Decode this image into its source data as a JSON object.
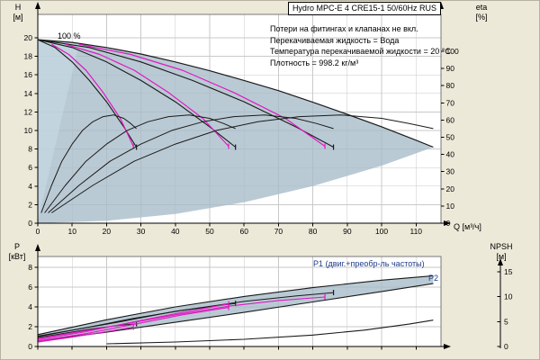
{
  "window": {
    "title_box": "Hydro MPC-E 4 CRE15-1 50/60Hz RUS"
  },
  "info_lines": [
    "Потери на фитингах и клапанах не вкл.",
    "Перекачиваемая жидкость = Вода",
    "Температура перекачиваемой жидкости = 20 °C",
    "Плотность = 998.2 кг/м³"
  ],
  "labels": {
    "speed": "100 %",
    "p1": "P1 (двиг.+преобр-ль частоты)",
    "p2": "P2",
    "h_axis": "H",
    "h_unit": "[м]",
    "eta_axis": "eta",
    "eta_unit": "[%]",
    "q_axis": "Q [м³/ч]",
    "p_axis": "P",
    "p_unit": "[кВт]",
    "npsh_axis": "NPSH",
    "npsh_unit": "[м]"
  },
  "colors": {
    "background": "#ece9d8",
    "plot_bg": "#ffffff",
    "grid": "#c9c9c9",
    "curve": "#1a1a1a",
    "magenta": "#e019c3",
    "envelope": "#a9bdc9",
    "wedge": "#c6d9e4",
    "navy": "#1f3c8c"
  },
  "chart_data": [
    {
      "type": "line",
      "name": "head-flow-chart",
      "x": {
        "label": "Q [м³/ч]",
        "min": 0,
        "max": 117,
        "ticks": [
          0,
          10,
          20,
          30,
          40,
          50,
          60,
          70,
          80,
          90,
          100,
          110
        ]
      },
      "y_left": {
        "label": "H [м]",
        "min": 0,
        "max": 22.5,
        "ticks": [
          0,
          2,
          4,
          6,
          8,
          10,
          12,
          14,
          16,
          18,
          20
        ]
      },
      "y_right": {
        "label": "eta [%]",
        "min": 0,
        "max": 120,
        "ticks": [
          0,
          10,
          20,
          30,
          40,
          50,
          60,
          70,
          80,
          90,
          100
        ]
      },
      "regions": [
        {
          "name": "operating-envelope",
          "color": "envelope",
          "opacity": 0.8,
          "upper": [
            [
              0,
              19.8
            ],
            [
              10,
              19.5
            ],
            [
              20,
              18.95
            ],
            [
              30,
              18.25
            ],
            [
              40,
              17.4
            ],
            [
              50,
              16.45
            ],
            [
              60,
              15.4
            ],
            [
              70,
              14.3
            ],
            [
              80,
              13.05
            ],
            [
              90,
              11.75
            ],
            [
              100,
              10.4
            ],
            [
              110,
              8.95
            ],
            [
              115,
              8.2
            ]
          ],
          "lower": [
            [
              0,
              0
            ],
            [
              20,
              0.25
            ],
            [
              40,
              1.0
            ],
            [
              60,
              2.25
            ],
            [
              80,
              4.0
            ],
            [
              100,
              6.2
            ],
            [
              115,
              8.2
            ]
          ]
        },
        {
          "name": "setpoint-wedge",
          "color": "wedge",
          "opacity": 0.65,
          "upper": [
            [
              0,
              19.8
            ],
            [
              12,
              19.35
            ]
          ],
          "lower": [
            [
              0,
              0.2
            ],
            [
              12,
              19.35
            ]
          ]
        }
      ],
      "series": [
        {
          "name": "pump-curve-4max",
          "axis": "left",
          "color": "curve",
          "width": 1.2,
          "points": [
            [
              0,
              19.8
            ],
            [
              10,
              19.5
            ],
            [
              20,
              18.95
            ],
            [
              30,
              18.25
            ],
            [
              40,
              17.4
            ],
            [
              50,
              16.45
            ],
            [
              60,
              15.4
            ],
            [
              70,
              14.3
            ],
            [
              80,
              13.05
            ],
            [
              90,
              11.75
            ],
            [
              100,
              10.4
            ],
            [
              110,
              8.95
            ],
            [
              115,
              8.2
            ]
          ]
        },
        {
          "name": "pump-curve-3max",
          "axis": "left",
          "color": "curve",
          "width": 1.1,
          "end_tick": true,
          "points": [
            [
              0,
              19.8
            ],
            [
              15,
              18.95
            ],
            [
              30,
              17.4
            ],
            [
              45,
              15.4
            ],
            [
              60,
              13.1
            ],
            [
              75,
              10.4
            ],
            [
              86,
              8.2
            ]
          ]
        },
        {
          "name": "pump-curve-2max",
          "axis": "left",
          "color": "curve",
          "width": 1.1,
          "end_tick": true,
          "points": [
            [
              0,
              19.8
            ],
            [
              10,
              18.95
            ],
            [
              20,
              17.4
            ],
            [
              30,
              15.4
            ],
            [
              40,
              13.1
            ],
            [
              50,
              10.4
            ],
            [
              57.5,
              8.2
            ]
          ]
        },
        {
          "name": "pump-curve-1max",
          "axis": "left",
          "color": "curve",
          "width": 1.1,
          "end_tick": true,
          "points": [
            [
              0,
              19.8
            ],
            [
              5,
              18.95
            ],
            [
              10,
              17.4
            ],
            [
              15,
              15.4
            ],
            [
              20,
              13.1
            ],
            [
              25,
              10.4
            ],
            [
              28.7,
              8.2
            ]
          ]
        },
        {
          "name": "duty-curve-1",
          "axis": "left",
          "color": "magenta",
          "width": 1.2,
          "end_tick": true,
          "points": [
            [
              4,
              19.3
            ],
            [
              9,
              18.2
            ],
            [
              14,
              16.5
            ],
            [
              19,
              14.1
            ],
            [
              24,
              11.3
            ],
            [
              27.8,
              8.3
            ]
          ]
        },
        {
          "name": "duty-curve-2",
          "axis": "left",
          "color": "magenta",
          "width": 1.2,
          "end_tick": true,
          "points": [
            [
              8,
              19.3
            ],
            [
              18,
              18.2
            ],
            [
              28,
              16.5
            ],
            [
              38,
              14.1
            ],
            [
              48,
              11.3
            ],
            [
              55.5,
              8.3
            ]
          ]
        },
        {
          "name": "duty-curve-3",
          "axis": "left",
          "color": "magenta",
          "width": 1.2,
          "end_tick": true,
          "points": [
            [
              12,
              19.3
            ],
            [
              27,
              18.2
            ],
            [
              42,
              16.5
            ],
            [
              57,
              14.1
            ],
            [
              72,
              11.3
            ],
            [
              83.5,
              8.3
            ]
          ]
        },
        {
          "name": "eta-curve-1",
          "axis": "right",
          "color": "curve",
          "width": 1,
          "points": [
            [
              1,
              6
            ],
            [
              4,
              22
            ],
            [
              7,
              36
            ],
            [
              10,
              46
            ],
            [
              13,
              54
            ],
            [
              16,
              59
            ],
            [
              19,
              62
            ],
            [
              22,
              63
            ],
            [
              25,
              61
            ],
            [
              27,
              58
            ],
            [
              28.7,
              55
            ]
          ]
        },
        {
          "name": "eta-curve-2",
          "axis": "right",
          "color": "curve",
          "width": 1,
          "points": [
            [
              2,
              6
            ],
            [
              8,
              22
            ],
            [
              14,
              36
            ],
            [
              20,
              46
            ],
            [
              26,
              54
            ],
            [
              32,
              59
            ],
            [
              38,
              62
            ],
            [
              44,
              63
            ],
            [
              50,
              61
            ],
            [
              54,
              58
            ],
            [
              57.5,
              55
            ]
          ]
        },
        {
          "name": "eta-curve-3",
          "axis": "right",
          "color": "curve",
          "width": 1,
          "points": [
            [
              3,
              6
            ],
            [
              12,
              22
            ],
            [
              21,
              36
            ],
            [
              30,
              46
            ],
            [
              39,
              54
            ],
            [
              48,
              59
            ],
            [
              57,
              62
            ],
            [
              66,
              63
            ],
            [
              75,
              61
            ],
            [
              81,
              58
            ],
            [
              86,
              55
            ]
          ]
        },
        {
          "name": "eta-curve-4",
          "axis": "right",
          "color": "curve",
          "width": 1,
          "points": [
            [
              4,
              6
            ],
            [
              16,
              22
            ],
            [
              28,
              36
            ],
            [
              40,
              46
            ],
            [
              52,
              54
            ],
            [
              64,
              59
            ],
            [
              76,
              62
            ],
            [
              88,
              63
            ],
            [
              100,
              61
            ],
            [
              108,
              58
            ],
            [
              115,
              55
            ]
          ]
        }
      ]
    },
    {
      "type": "line",
      "name": "power-npsh-chart",
      "x": {
        "label": "",
        "min": 0,
        "max": 117,
        "ticks": [
          0,
          10,
          20,
          30,
          40,
          50,
          60,
          70,
          80,
          90,
          100,
          110
        ]
      },
      "y_left": {
        "label": "P [кВт]",
        "min": 0,
        "max": 9,
        "ticks": [
          0,
          2,
          4,
          6,
          8
        ]
      },
      "y_right": {
        "label": "NPSH [м]",
        "min": 0,
        "max": 18,
        "ticks": [
          0,
          5,
          10,
          15
        ]
      },
      "regions": [
        {
          "name": "power-envelope",
          "color": "envelope",
          "opacity": 0.8,
          "upper": [
            [
              0,
              1.2
            ],
            [
              20,
              2.7
            ],
            [
              40,
              4.0
            ],
            [
              60,
              5.05
            ],
            [
              80,
              5.95
            ],
            [
              100,
              6.7
            ],
            [
              115,
              7.15
            ]
          ],
          "lower": [
            [
              0,
              0.55
            ],
            [
              20,
              1.45
            ],
            [
              40,
              2.45
            ],
            [
              60,
              3.45
            ],
            [
              80,
              4.5
            ],
            [
              100,
              5.55
            ],
            [
              115,
              6.35
            ]
          ]
        }
      ],
      "series": [
        {
          "name": "p1-max-curve",
          "axis": "left",
          "color": "curve",
          "width": 1.1,
          "points": [
            [
              0,
              1.2
            ],
            [
              20,
              2.7
            ],
            [
              40,
              4.0
            ],
            [
              60,
              5.05
            ],
            [
              80,
              5.95
            ],
            [
              100,
              6.7
            ],
            [
              115,
              7.15
            ]
          ]
        },
        {
          "name": "p2-curve",
          "axis": "left",
          "color": "curve",
          "width": 1.1,
          "points": [
            [
              0,
              0.55
            ],
            [
              20,
              1.45
            ],
            [
              40,
              2.45
            ],
            [
              60,
              3.45
            ],
            [
              80,
              4.5
            ],
            [
              100,
              5.55
            ],
            [
              115,
              6.35
            ]
          ]
        },
        {
          "name": "power-curve-1",
          "axis": "left",
          "color": "curve",
          "width": 1,
          "end_tick": true,
          "points": [
            [
              0,
              0.9
            ],
            [
              8,
              1.35
            ],
            [
              16,
              1.8
            ],
            [
              24,
              2.15
            ],
            [
              28.7,
              2.3
            ]
          ]
        },
        {
          "name": "power-curve-2",
          "axis": "left",
          "color": "curve",
          "width": 1,
          "end_tick": true,
          "points": [
            [
              0,
              1.0
            ],
            [
              14,
              1.9
            ],
            [
              28,
              2.85
            ],
            [
              42,
              3.65
            ],
            [
              57.5,
              4.35
            ]
          ]
        },
        {
          "name": "power-curve-3",
          "axis": "left",
          "color": "curve",
          "width": 1,
          "end_tick": true,
          "points": [
            [
              0,
              1.05
            ],
            [
              20,
              2.25
            ],
            [
              40,
              3.55
            ],
            [
              60,
              4.55
            ],
            [
              75,
              5.1
            ],
            [
              86,
              5.45
            ]
          ]
        },
        {
          "name": "duty-power-1",
          "axis": "left",
          "color": "magenta",
          "width": 1.1,
          "end_tick": true,
          "points": [
            [
              0,
              0.45
            ],
            [
              10,
              0.95
            ],
            [
              20,
              1.5
            ],
            [
              27.8,
              1.95
            ]
          ]
        },
        {
          "name": "duty-power-2",
          "axis": "left",
          "color": "magenta",
          "width": 1.1,
          "end_tick": true,
          "points": [
            [
              0,
              0.55
            ],
            [
              14,
              1.3
            ],
            [
              28,
              2.25
            ],
            [
              42,
              3.2
            ],
            [
              55.5,
              3.95
            ]
          ]
        },
        {
          "name": "duty-power-3",
          "axis": "left",
          "color": "magenta",
          "width": 1.1,
          "end_tick": true,
          "points": [
            [
              0,
              0.68
            ],
            [
              14,
              1.5
            ],
            [
              28,
              2.5
            ],
            [
              42,
              3.45
            ],
            [
              55.5,
              4.3
            ]
          ]
        },
        {
          "name": "duty-power-4",
          "axis": "left",
          "color": "magenta",
          "width": 1.1,
          "end_tick": true,
          "points": [
            [
              0,
              0.8
            ],
            [
              20,
              1.95
            ],
            [
              40,
              3.2
            ],
            [
              56,
              4.1
            ],
            [
              70,
              4.65
            ],
            [
              83.5,
              5.0
            ]
          ]
        },
        {
          "name": "npsh-curve",
          "axis": "right",
          "color": "curve",
          "width": 1.1,
          "points": [
            [
              20,
              0.55
            ],
            [
              40,
              0.9
            ],
            [
              60,
              1.45
            ],
            [
              80,
              2.3
            ],
            [
              95,
              3.3
            ],
            [
              108,
              4.5
            ],
            [
              115,
              5.3
            ]
          ]
        }
      ]
    }
  ]
}
